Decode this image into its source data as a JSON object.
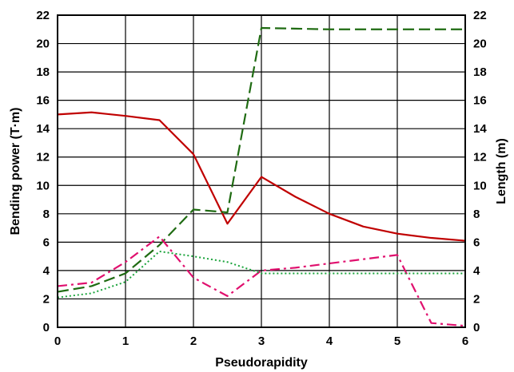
{
  "chart_data": {
    "type": "line",
    "xlabel": "Pseudorapidity",
    "ylabel_left": "Bending power (T·m)",
    "ylabel_right": "Length (m)",
    "xlim": [
      0,
      6
    ],
    "ylim": [
      0,
      22
    ],
    "x_ticks": [
      "0",
      "1",
      "2",
      "3",
      "4",
      "5",
      "6"
    ],
    "y_ticks": [
      "0",
      "2",
      "4",
      "6",
      "8",
      "10",
      "12",
      "14",
      "16",
      "18",
      "20",
      "22"
    ],
    "grid": true,
    "legend": "none",
    "series": [
      {
        "color": "#c00000",
        "style": "solid",
        "x": [
          0,
          0.5,
          1,
          1.5,
          2,
          2.5,
          3,
          3.5,
          4,
          4.5,
          5,
          5.5,
          6
        ],
        "y": [
          15.0,
          15.15,
          14.9,
          14.6,
          12.2,
          7.3,
          10.6,
          9.2,
          8.0,
          7.1,
          6.6,
          6.3,
          6.1
        ]
      },
      {
        "color": "#1f6b12",
        "style": "dashed",
        "x": [
          0,
          0.5,
          1,
          1.5,
          2,
          2.5,
          3,
          3.5,
          4,
          4.5,
          5,
          5.5,
          6
        ],
        "y": [
          2.5,
          2.9,
          3.8,
          5.8,
          8.3,
          8.1,
          21.1,
          21.05,
          21.0,
          21.0,
          21.0,
          21.0,
          21.0
        ]
      },
      {
        "color": "#e0106e",
        "style": "dash-dot",
        "x": [
          0,
          0.5,
          1,
          1.5,
          2,
          2.5,
          3,
          3.5,
          4,
          4.5,
          5,
          5.5,
          6
        ],
        "y": [
          2.9,
          3.15,
          4.6,
          6.4,
          3.5,
          2.2,
          4.0,
          4.2,
          4.5,
          4.8,
          5.1,
          0.3,
          0.1
        ]
      },
      {
        "color": "#19a33a",
        "style": "dotted",
        "x": [
          0,
          0.5,
          1,
          1.5,
          2,
          2.5,
          3,
          3.5,
          4,
          4.5,
          5,
          5.5,
          6
        ],
        "y": [
          2.1,
          2.4,
          3.2,
          5.35,
          5.0,
          4.6,
          3.8,
          3.8,
          3.8,
          3.8,
          3.8,
          3.8,
          3.8
        ]
      }
    ]
  }
}
